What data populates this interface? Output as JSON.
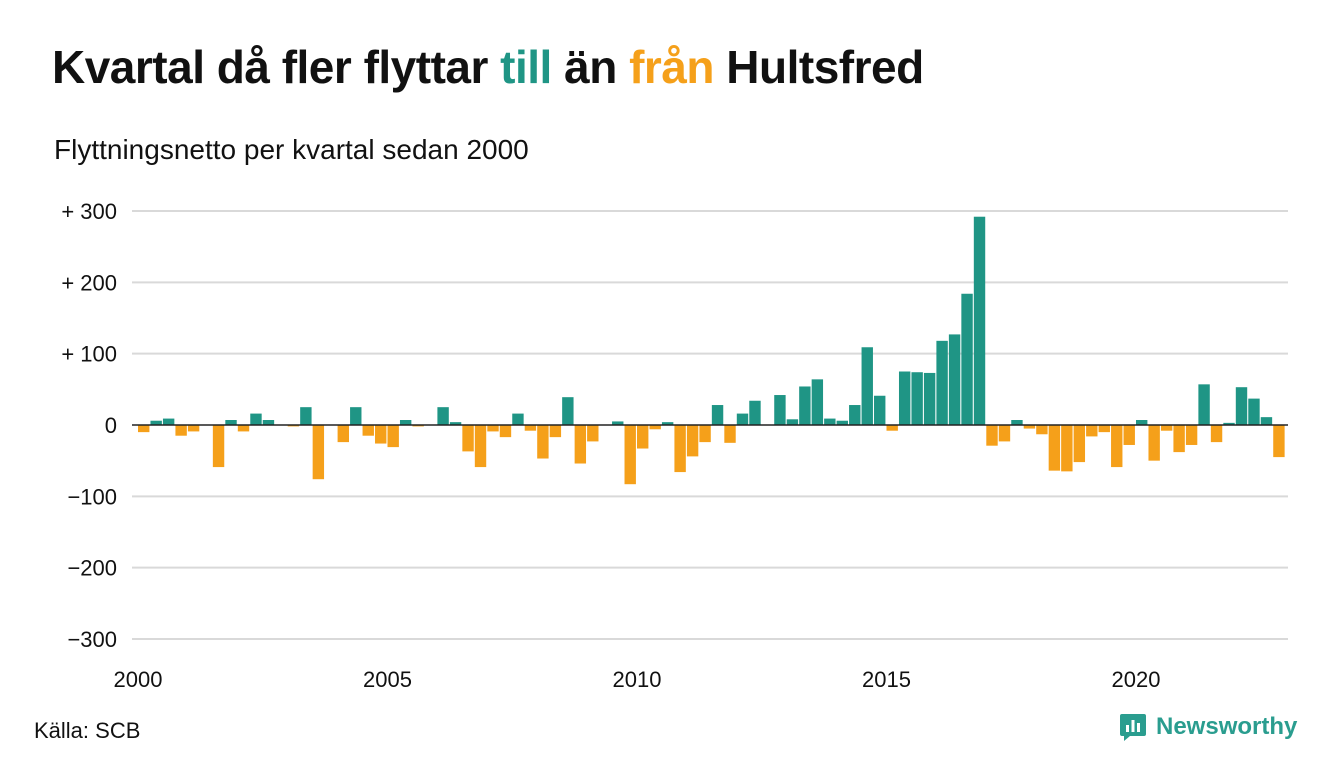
{
  "header": {
    "title_part1": "Kvartal då fler flyttar ",
    "title_in": "till",
    "title_part2": " än ",
    "title_out": "från",
    "title_part3": " Hultsfred",
    "subtitle": "Flyttningsnetto per kvartal sedan 2000"
  },
  "footer": {
    "source": "Källa: SCB",
    "brand": "Newsworthy"
  },
  "colors": {
    "positive": "#1f9585",
    "negative": "#f5a01a",
    "grid": "#d9d9d9",
    "zero_line": "#222222",
    "brand": "#2a9d8f"
  },
  "chart_data": {
    "type": "bar",
    "title": "Kvartal då fler flyttar till än från Hultsfred",
    "subtitle": "Flyttningsnetto per kvartal sedan 2000",
    "x_start": "2000 Q1",
    "ylim": [
      -300,
      300
    ],
    "y_ticks": [
      300,
      200,
      100,
      0,
      -100,
      -200,
      -300
    ],
    "y_tick_labels": [
      "+ 300",
      "+ 200",
      "+ 100",
      "0",
      "−100",
      "−200",
      "−300"
    ],
    "x_tick_labels": [
      "2000",
      "2005",
      "2010",
      "2015",
      "2020"
    ],
    "grid": true,
    "values": [
      -10,
      6,
      9,
      -15,
      -9,
      0,
      -59,
      7,
      -9,
      16,
      7,
      0,
      -2,
      25,
      -76,
      0,
      -24,
      25,
      -15,
      -26,
      -31,
      7,
      -2,
      0,
      25,
      4,
      -37,
      -59,
      -9,
      -17,
      16,
      -8,
      -47,
      -17,
      39,
      -54,
      -23,
      0,
      5,
      -83,
      -33,
      -6,
      4,
      -66,
      -44,
      -24,
      28,
      -25,
      16,
      34,
      0,
      42,
      8,
      54,
      64,
      9,
      6,
      28,
      109,
      41,
      -8,
      75,
      74,
      73,
      118,
      127,
      184,
      292,
      -29,
      -23,
      7,
      -5,
      -13,
      -64,
      -65,
      -52,
      -16,
      -10,
      -59,
      -28,
      7,
      -50,
      -8,
      -38,
      -28,
      57,
      -24,
      3,
      53,
      37,
      11,
      -45
    ]
  }
}
